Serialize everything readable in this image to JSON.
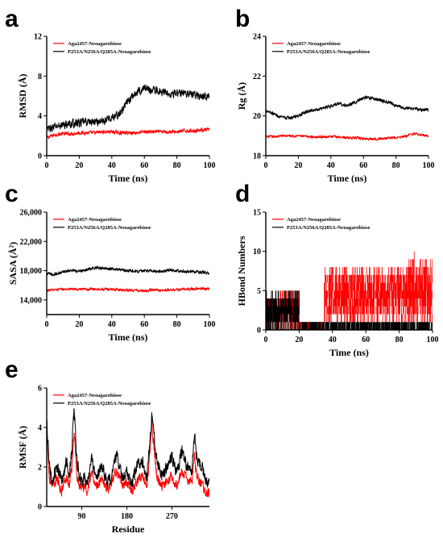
{
  "figure": {
    "series_colors": {
      "Aga2457-Neoagarobiose": "#ff0000",
      "P253A/N256A/Q285A-Neoagarobiose": "#000000"
    }
  },
  "chart_data": [
    {
      "panel": "a",
      "type": "line",
      "xlabel": "Time (ns)",
      "ylabel": "RMSD (Å)",
      "xlim": [
        0,
        100
      ],
      "ylim": [
        0,
        12
      ],
      "xticks": [
        0,
        20,
        40,
        60,
        80,
        100
      ],
      "yticks": [
        0,
        4,
        8,
        12
      ],
      "legend": "top-left",
      "series": [
        {
          "name": "Aga2457-Neoagarobiose",
          "color": "#ff0000",
          "x": [
            0,
            5,
            10,
            15,
            20,
            25,
            30,
            35,
            40,
            45,
            50,
            55,
            60,
            65,
            70,
            75,
            80,
            85,
            90,
            95,
            100
          ],
          "y": [
            1.8,
            2.1,
            2.2,
            2.2,
            2.3,
            2.3,
            2.3,
            2.4,
            2.4,
            2.3,
            2.3,
            2.3,
            2.4,
            2.4,
            2.4,
            2.4,
            2.4,
            2.5,
            2.5,
            2.6,
            2.6
          ],
          "noise": 0.25
        },
        {
          "name": "P253A/N256A/Q285A-Neoagarobiose",
          "color": "#000000",
          "x": [
            0,
            5,
            10,
            15,
            20,
            25,
            30,
            35,
            40,
            45,
            50,
            55,
            60,
            65,
            70,
            75,
            80,
            85,
            90,
            95,
            100
          ],
          "y": [
            2.6,
            2.9,
            3.1,
            3.2,
            3.3,
            3.4,
            3.4,
            3.5,
            3.8,
            4.2,
            5.5,
            6.3,
            6.8,
            6.6,
            6.5,
            6.3,
            6.2,
            6.4,
            6.1,
            6.0,
            6.0
          ],
          "noise": 0.55
        }
      ]
    },
    {
      "panel": "b",
      "type": "line",
      "xlabel": "Time (ns)",
      "ylabel": "Rg (Å)",
      "xlim": [
        0,
        100
      ],
      "ylim": [
        18,
        24
      ],
      "xticks": [
        0,
        20,
        40,
        60,
        80,
        100
      ],
      "yticks": [
        18,
        20,
        22,
        24
      ],
      "legend": "top-left",
      "series": [
        {
          "name": "Aga2457-Neoagarobiose",
          "color": "#ff0000",
          "x": [
            0,
            5,
            10,
            15,
            20,
            25,
            30,
            35,
            40,
            45,
            50,
            55,
            60,
            65,
            70,
            75,
            80,
            85,
            90,
            95,
            100
          ],
          "y": [
            18.95,
            18.95,
            19.0,
            19.0,
            19.0,
            18.95,
            18.95,
            18.95,
            18.95,
            18.95,
            18.9,
            18.9,
            18.85,
            18.85,
            18.85,
            18.9,
            18.9,
            18.95,
            19.1,
            19.05,
            19.0
          ],
          "noise": 0.09
        },
        {
          "name": "P253A/N256A/Q285A-Neoagarobiose",
          "color": "#000000",
          "x": [
            0,
            5,
            10,
            15,
            20,
            25,
            30,
            35,
            40,
            45,
            50,
            55,
            60,
            65,
            70,
            75,
            80,
            85,
            90,
            95,
            100
          ],
          "y": [
            20.3,
            20.1,
            19.9,
            19.9,
            20.0,
            20.2,
            20.3,
            20.4,
            20.5,
            20.6,
            20.5,
            20.7,
            20.9,
            20.9,
            20.8,
            20.7,
            20.5,
            20.4,
            20.4,
            20.3,
            20.3
          ],
          "noise": 0.12
        }
      ]
    },
    {
      "panel": "c",
      "type": "line",
      "xlabel": "Time (ns)",
      "ylabel": "SASA (Å²)",
      "xlim": [
        0,
        100
      ],
      "ylim": [
        12000,
        26000
      ],
      "xticks": [
        0,
        20,
        40,
        60,
        80,
        100
      ],
      "yticks": [
        14000,
        18000,
        22000,
        26000
      ],
      "ytick_labels": [
        "14,000",
        "18,000",
        "22,000",
        "26,000"
      ],
      "legend": "top-left",
      "series": [
        {
          "name": "Aga2457-Neoagarobiose",
          "color": "#ff0000",
          "x": [
            0,
            5,
            10,
            15,
            20,
            25,
            30,
            35,
            40,
            45,
            50,
            55,
            60,
            65,
            70,
            75,
            80,
            85,
            90,
            95,
            100
          ],
          "y": [
            15300,
            15400,
            15450,
            15500,
            15400,
            15450,
            15500,
            15450,
            15450,
            15400,
            15350,
            15300,
            15200,
            15400,
            15300,
            15350,
            15400,
            15450,
            15500,
            15550,
            15500
          ],
          "noise": 260
        },
        {
          "name": "P253A/N256A/Q285A-Neoagarobiose",
          "color": "#000000",
          "x": [
            0,
            5,
            10,
            15,
            20,
            25,
            30,
            35,
            40,
            45,
            50,
            55,
            60,
            65,
            70,
            75,
            80,
            85,
            90,
            95,
            100
          ],
          "y": [
            17600,
            17500,
            17800,
            18000,
            17900,
            18200,
            18400,
            18300,
            18300,
            18100,
            18000,
            17900,
            18000,
            18000,
            17900,
            18100,
            18000,
            17900,
            17800,
            17800,
            17700
          ],
          "noise": 300
        }
      ]
    },
    {
      "panel": "d",
      "type": "bar",
      "xlabel": "Time (ns)",
      "ylabel": "HBond Numbers",
      "xlim": [
        0,
        100
      ],
      "ylim": [
        0,
        15
      ],
      "xticks": [
        0,
        20,
        40,
        60,
        80,
        100
      ],
      "yticks": [
        0,
        5,
        10,
        15
      ],
      "legend": "top-left",
      "series": [
        {
          "name": "Aga2457-Neoagarobiose",
          "color": "#ff0000",
          "segments": [
            {
              "x": [
                0,
                8
              ],
              "range": [
                0,
                4
              ]
            },
            {
              "x": [
                8,
                20
              ],
              "range": [
                0,
                5
              ]
            },
            {
              "x": [
                20,
                35
              ],
              "range": [
                0,
                1
              ]
            },
            {
              "x": [
                35,
                85
              ],
              "range": [
                1,
                8
              ]
            },
            {
              "x": [
                85,
                100
              ],
              "range": [
                1,
                9
              ]
            }
          ],
          "peak": {
            "x": 89,
            "y": 10
          }
        },
        {
          "name": "P253A/N256A/Q285A-Neoagarobiose",
          "color": "#000000",
          "segments": [
            {
              "x": [
                0,
                5
              ],
              "range": [
                0,
                5
              ]
            },
            {
              "x": [
                5,
                20
              ],
              "range": [
                0,
                5
              ]
            },
            {
              "x": [
                20,
                100
              ],
              "range": [
                0,
                1
              ]
            }
          ]
        }
      ]
    },
    {
      "panel": "e",
      "type": "line",
      "xlabel": "Residue",
      "ylabel": "RMSF (Å)",
      "xlim": [
        20,
        345
      ],
      "ylim": [
        0,
        6
      ],
      "xticks": [
        90,
        180,
        270
      ],
      "yticks": [
        0,
        2,
        4,
        6
      ],
      "legend": "top-left",
      "series": [
        {
          "name": "Aga2457-Neoagarobiose",
          "color": "#ff0000",
          "x": [
            20,
            25,
            30,
            40,
            50,
            60,
            65,
            70,
            75,
            80,
            85,
            90,
            95,
            100,
            110,
            120,
            130,
            140,
            150,
            160,
            170,
            180,
            190,
            200,
            210,
            220,
            225,
            230,
            240,
            250,
            260,
            270,
            280,
            290,
            300,
            310,
            315,
            320,
            330,
            340,
            345
          ],
          "y": [
            3.9,
            1.5,
            1.0,
            1.4,
            0.8,
            1.6,
            1.0,
            2.0,
            3.8,
            1.5,
            1.1,
            0.9,
            1.0,
            0.8,
            1.6,
            1.0,
            1.5,
            0.8,
            1.2,
            1.9,
            1.0,
            1.3,
            0.8,
            1.3,
            1.6,
            1.0,
            2.4,
            4.1,
            1.5,
            1.0,
            1.3,
            1.6,
            1.0,
            1.8,
            1.4,
            1.2,
            2.5,
            1.6,
            1.1,
            0.7,
            0.7
          ],
          "noise": 0.35
        },
        {
          "name": "P253A/N256A/Q285A-Neoagarobiose",
          "color": "#000000",
          "x": [
            20,
            25,
            30,
            40,
            50,
            60,
            65,
            70,
            75,
            80,
            85,
            90,
            95,
            100,
            110,
            120,
            130,
            140,
            150,
            160,
            170,
            180,
            190,
            200,
            210,
            220,
            225,
            230,
            240,
            250,
            260,
            270,
            280,
            290,
            300,
            310,
            315,
            320,
            330,
            340,
            345
          ],
          "y": [
            4.2,
            2.2,
            1.3,
            2.0,
            1.3,
            2.3,
            1.6,
            2.8,
            5.1,
            2.3,
            1.6,
            1.3,
            1.4,
            1.1,
            2.3,
            1.4,
            2.0,
            1.2,
            1.6,
            2.7,
            1.4,
            1.7,
            1.2,
            2.0,
            2.4,
            1.5,
            3.0,
            4.6,
            2.3,
            1.5,
            2.0,
            2.6,
            1.6,
            2.8,
            2.1,
            1.8,
            3.6,
            2.5,
            2.0,
            1.2,
            1.2
          ],
          "noise": 0.45
        }
      ]
    }
  ]
}
